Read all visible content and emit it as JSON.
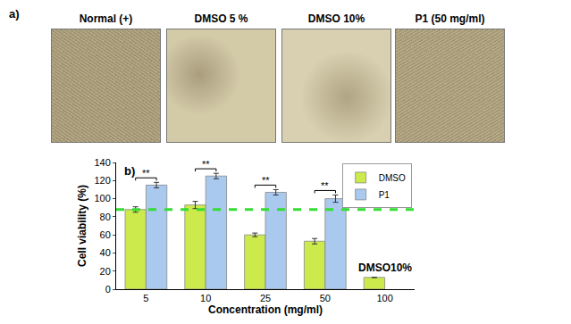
{
  "panel_a": {
    "label": "a)",
    "images": [
      {
        "caption": "Normal (+)"
      },
      {
        "caption": "DMSO 5 %"
      },
      {
        "caption": "DMSO 10%"
      },
      {
        "caption": "P1 (50 mg/ml)"
      }
    ]
  },
  "chart_data": {
    "type": "bar",
    "panel_label": "b)",
    "x_label": "Concentration (mg/ml)",
    "y_label": "Cell viability (%)",
    "categories": [
      "5",
      "10",
      "25",
      "50",
      "100"
    ],
    "series": [
      {
        "name": "DMSO",
        "color": "#ccea4c",
        "values": [
          88,
          93,
          60,
          53,
          13
        ],
        "errors": [
          3,
          4,
          2,
          3,
          0
        ]
      },
      {
        "name": "P1",
        "color": "#a9c9ee",
        "values": [
          115,
          125,
          107,
          100,
          null
        ],
        "errors": [
          3,
          3,
          3,
          4,
          null
        ]
      }
    ],
    "ylim": [
      0,
      140
    ],
    "yticks": [
      0,
      20,
      40,
      60,
      80,
      100,
      120,
      140
    ],
    "legend": "upper right",
    "grid": false,
    "reference_line": {
      "y": 88,
      "color": "#33dd33",
      "line_style": "dash"
    },
    "significance": [
      {
        "category": "5",
        "text": "**"
      },
      {
        "category": "10",
        "text": "**"
      },
      {
        "category": "25",
        "text": "**"
      },
      {
        "category": "50",
        "text": "**"
      }
    ],
    "annotations": [
      {
        "category": "100",
        "series": "DMSO",
        "text": "DMSO10%"
      }
    ]
  }
}
